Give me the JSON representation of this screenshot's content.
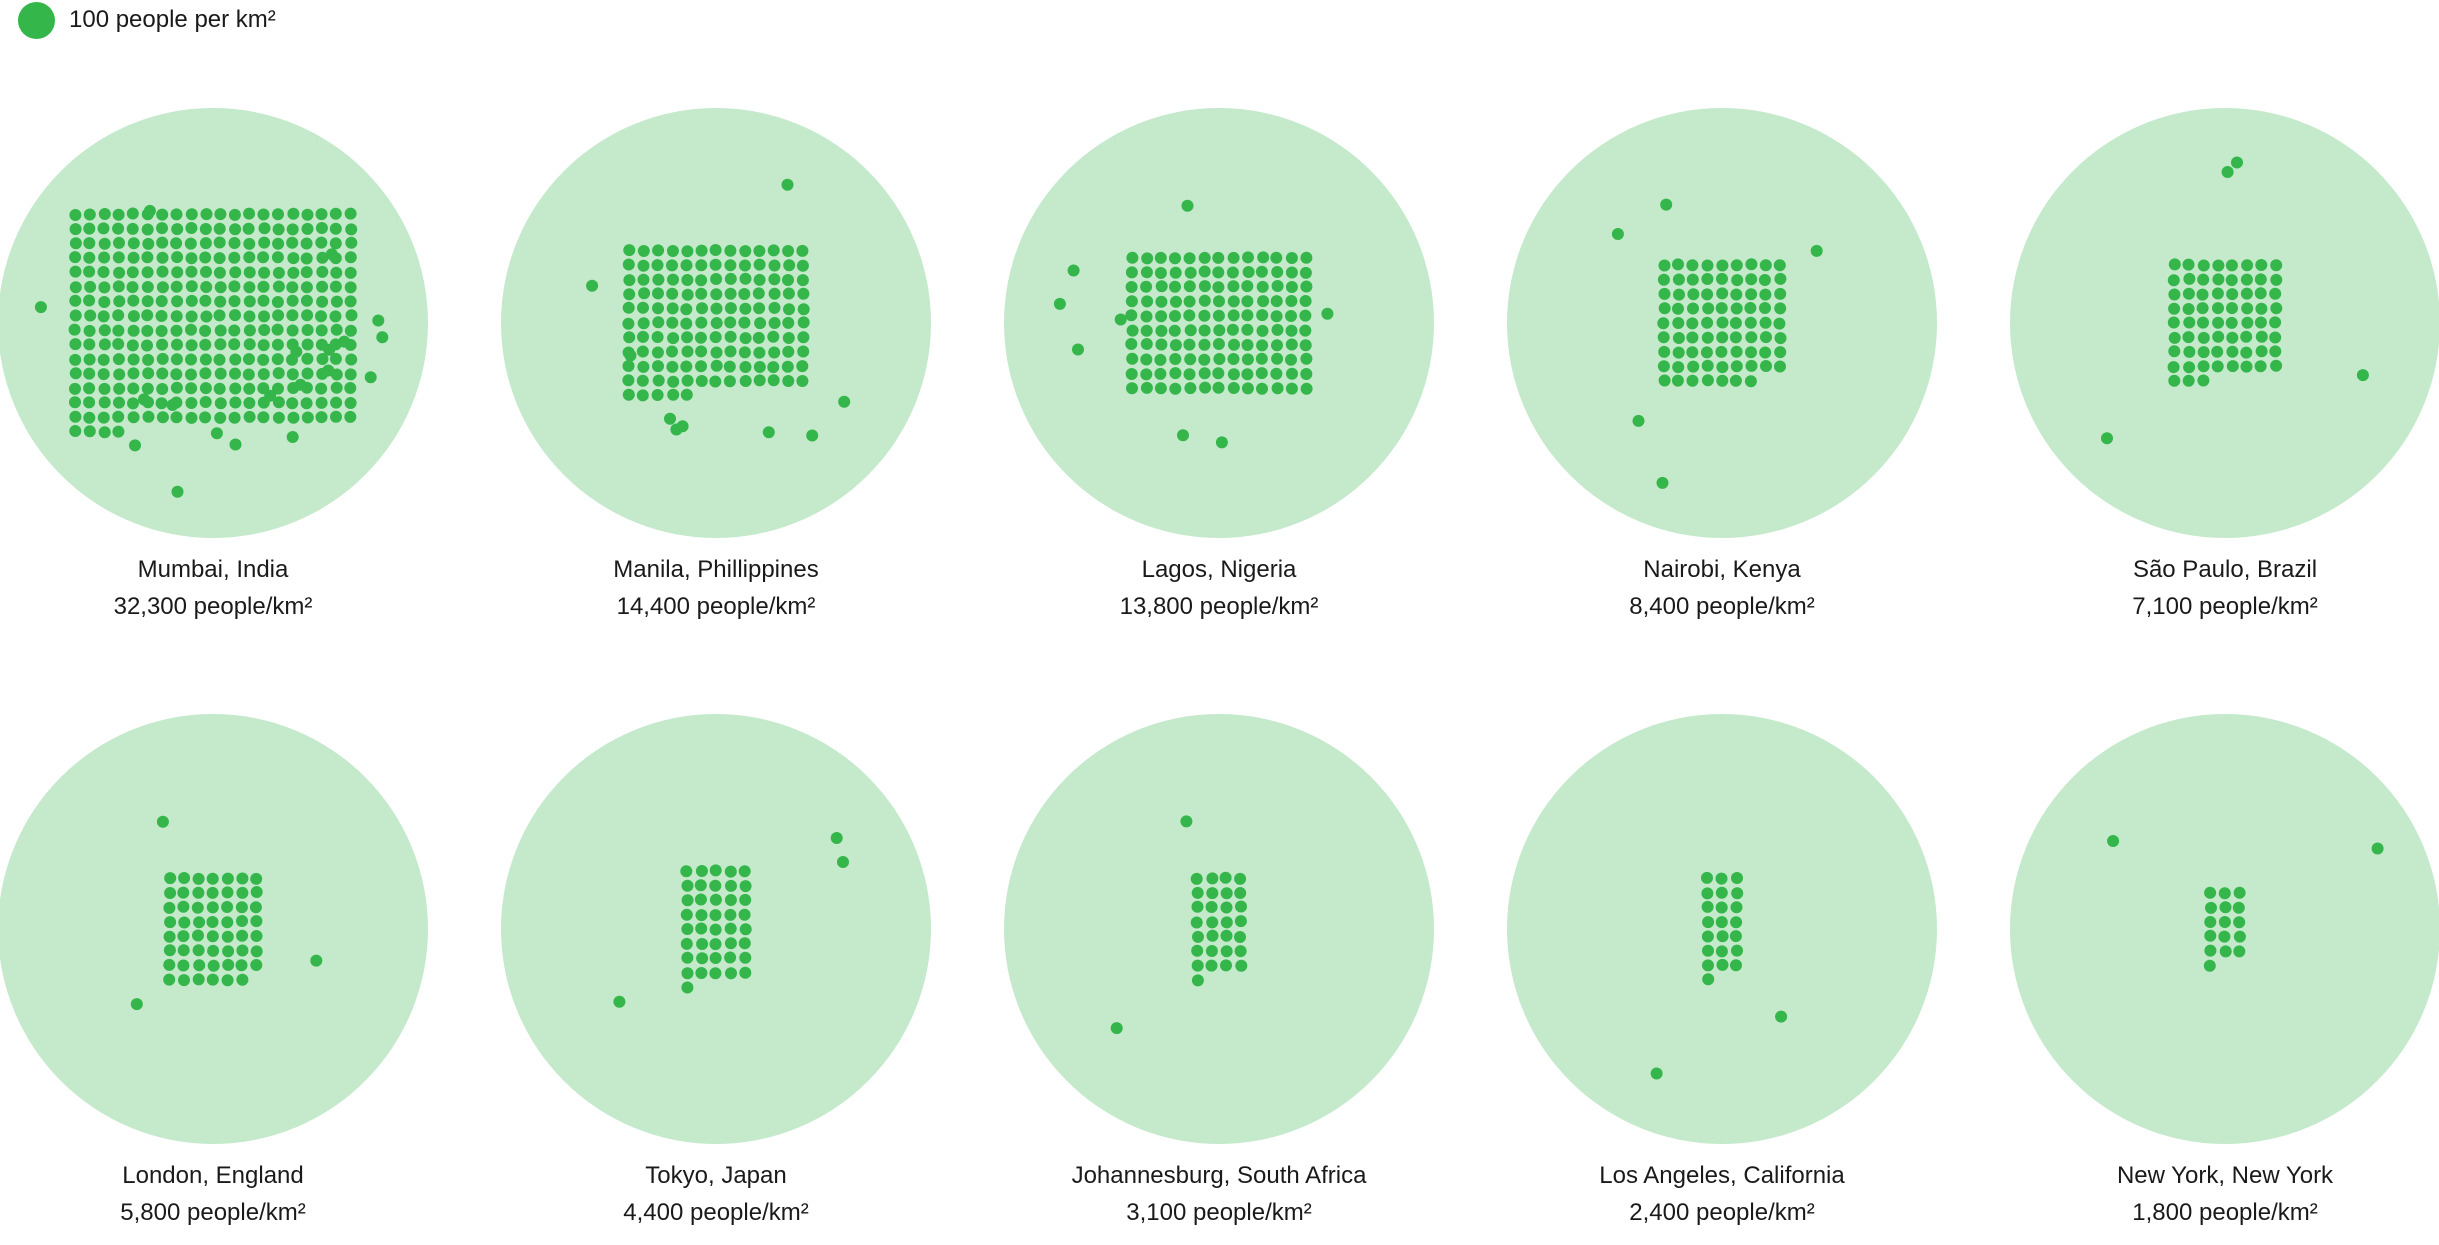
{
  "legend": {
    "text": "100 people per km²"
  },
  "colors": {
    "dot": "#35b64a",
    "circle": "#c4e9cb",
    "text": "#1a1a1a"
  },
  "chart_data": {
    "type": "unit-dot",
    "unit": "100 people per km²",
    "cities": [
      {
        "name": "Mumbai, India",
        "density_label": "32,300 people/km²",
        "density": 32300
      },
      {
        "name": "Manila, Phillippines",
        "density_label": "14,400 people/km²",
        "density": 14400
      },
      {
        "name": "Lagos, Nigeria",
        "density_label": "13,800 people/km²",
        "density": 13800
      },
      {
        "name": "Nairobi, Kenya",
        "density_label": "8,400 people/km²",
        "density": 8400
      },
      {
        "name": "São Paulo, Brazil",
        "density_label": "7,100 people/km²",
        "density": 7100
      },
      {
        "name": "London, England",
        "density_label": "5,800 people/km²",
        "density": 5800
      },
      {
        "name": "Tokyo, Japan",
        "density_label": "4,400 people/km²",
        "density": 4400
      },
      {
        "name": "Johannesburg, South Africa",
        "density_label": "3,100 people/km²",
        "density": 3100
      },
      {
        "name": "Los Angeles, California",
        "density_label": "2,400 people/km²",
        "density": 2400
      },
      {
        "name": "New York, New York",
        "density_label": "1,800 people/km²",
        "density": 1800
      }
    ]
  }
}
